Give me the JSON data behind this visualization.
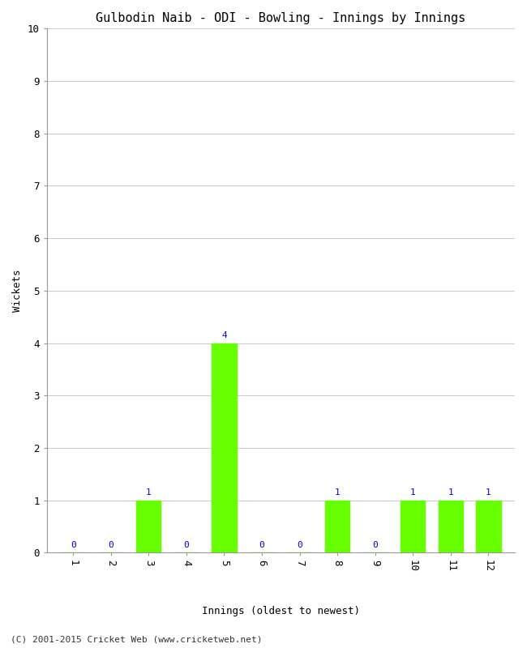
{
  "title": "Gulbodin Naib - ODI - Bowling - Innings by Innings",
  "xlabel": "Innings (oldest to newest)",
  "ylabel": "Wickets",
  "categories": [
    1,
    2,
    3,
    4,
    5,
    6,
    7,
    8,
    9,
    10,
    11,
    12
  ],
  "values": [
    0,
    0,
    1,
    0,
    4,
    0,
    0,
    1,
    0,
    1,
    1,
    1
  ],
  "bar_color": "#66ff00",
  "ylim": [
    0,
    10
  ],
  "yticks": [
    0,
    1,
    2,
    3,
    4,
    5,
    6,
    7,
    8,
    9,
    10
  ],
  "label_color": "#0000cc",
  "background_color": "#ffffff",
  "grid_color": "#cccccc",
  "footer": "(C) 2001-2015 Cricket Web (www.cricketweb.net)",
  "title_fontsize": 11,
  "axis_label_fontsize": 9,
  "tick_fontsize": 9,
  "annotation_fontsize": 8
}
